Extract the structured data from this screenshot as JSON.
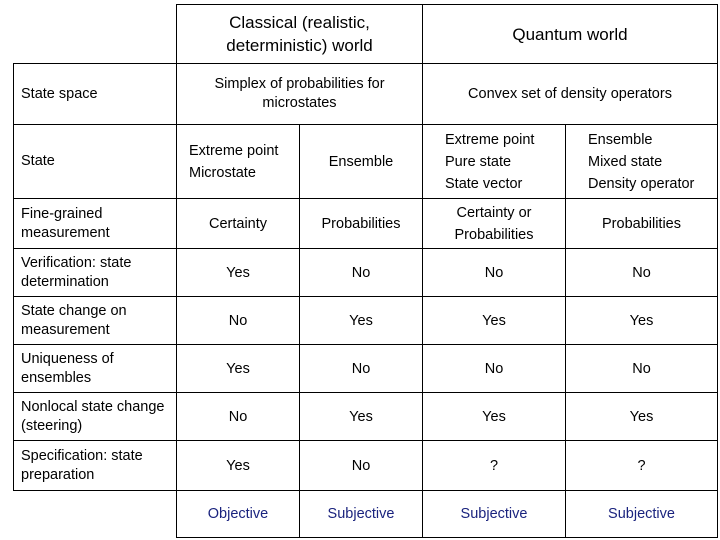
{
  "header": {
    "classical": "Classical (realistic, deterministic) world",
    "quantum": "Quantum world"
  },
  "rows": {
    "state_space": {
      "label": "State space",
      "classical": "Simplex of probabilities for microstates",
      "quantum": "Convex set of density operators"
    },
    "state": {
      "label": "State",
      "c_extreme": [
        "Extreme point",
        "Microstate"
      ],
      "c_ensemble": "Ensemble",
      "q_extreme": [
        "Extreme point",
        "Pure state",
        "State vector"
      ],
      "q_ensemble": [
        "Ensemble",
        "Mixed state",
        "Density operator"
      ]
    },
    "fine_grained": {
      "label": "Fine-grained measurement",
      "values": [
        "Certainty",
        "Probabilities",
        "Certainty or Probabilities",
        "Probabilities"
      ]
    },
    "verification": {
      "label": "Verification: state determination",
      "values": [
        "Yes",
        "No",
        "No",
        "No"
      ]
    },
    "state_change": {
      "label": "State change on measurement",
      "values": [
        "No",
        "Yes",
        "Yes",
        "Yes"
      ]
    },
    "uniqueness": {
      "label": "Uniqueness of ensembles",
      "values": [
        "Yes",
        "No",
        "No",
        "No"
      ]
    },
    "nonlocal": {
      "label": "Nonlocal state change (steering)",
      "values": [
        "No",
        "Yes",
        "Yes",
        "Yes"
      ]
    },
    "specification": {
      "label": "Specification: state preparation",
      "values": [
        "Yes",
        "No",
        "?",
        "?"
      ]
    }
  },
  "footer": {
    "values": [
      "Objective",
      "Subjective",
      "Subjective",
      "Subjective"
    ]
  },
  "colors": {
    "footer_text": "#1a237e",
    "border": "#000000"
  }
}
